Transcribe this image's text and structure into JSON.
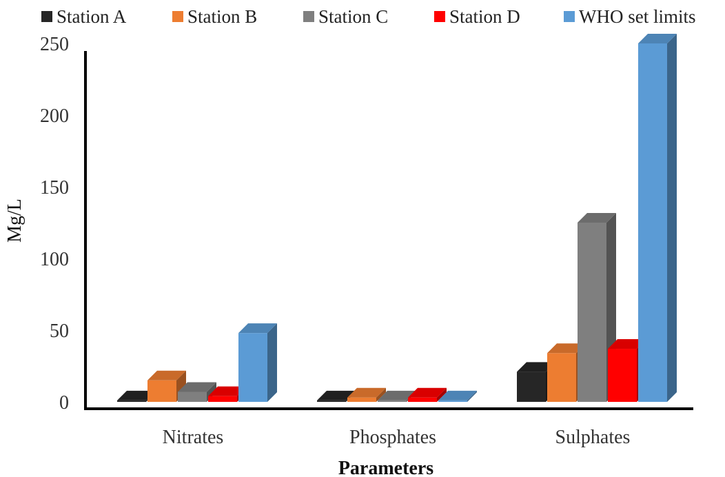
{
  "chart_data": {
    "type": "bar",
    "xlabel": "Parameters",
    "ylabel": "Mg/L",
    "ylim": [
      0,
      250
    ],
    "yticks": [
      0,
      50,
      100,
      150,
      200,
      250
    ],
    "categories": [
      "Nitrates",
      "Phosphates",
      "Sulphates"
    ],
    "legend_position": "top",
    "grid": false,
    "series": [
      {
        "name": "Station A",
        "color": "#262626",
        "values": [
          1,
          1,
          21
        ]
      },
      {
        "name": "Station B",
        "color": "#ED7D31",
        "values": [
          15,
          3,
          34
        ]
      },
      {
        "name": "Station C",
        "color": "#7F7F7F",
        "values": [
          7,
          1,
          125
        ]
      },
      {
        "name": "Station D",
        "color": "#FF0000",
        "values": [
          4,
          3,
          37
        ]
      },
      {
        "name": "WHO set limits",
        "color": "#5B9BD5",
        "values": [
          48,
          1,
          250
        ]
      }
    ]
  }
}
